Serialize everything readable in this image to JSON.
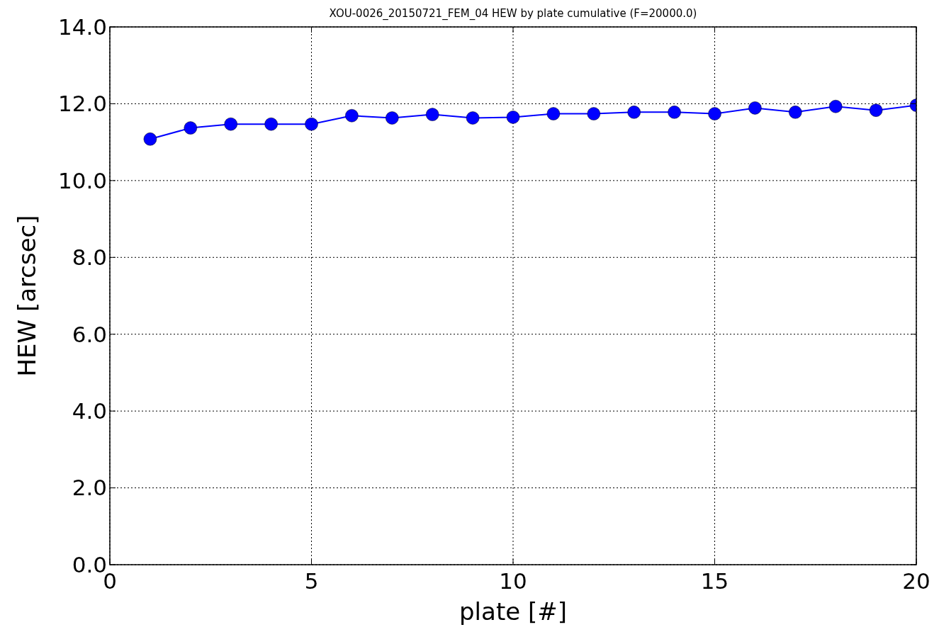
{
  "chart_data": {
    "type": "line",
    "title": "XOU-0026_20150721_FEM_04 HEW by plate cumulative (F=20000.0)",
    "xlabel": "plate [#]",
    "ylabel": "HEW [arcsec]",
    "x": [
      1,
      2,
      3,
      4,
      5,
      6,
      7,
      8,
      9,
      10,
      11,
      12,
      13,
      14,
      15,
      16,
      17,
      18,
      19,
      20
    ],
    "series": [
      {
        "color": "#0000ff",
        "values": [
          11.08,
          11.37,
          11.47,
          11.47,
          11.47,
          11.69,
          11.63,
          11.72,
          11.63,
          11.65,
          11.74,
          11.74,
          11.78,
          11.78,
          11.74,
          11.89,
          11.78,
          11.93,
          11.83,
          11.96
        ]
      }
    ],
    "xlim": [
      0,
      20
    ],
    "xticks": [
      0,
      5,
      10,
      15,
      20
    ],
    "ylim": [
      0,
      14
    ],
    "yticks": [
      {
        "value": 0,
        "label": "0.0"
      },
      {
        "value": 2,
        "label": "2.0"
      },
      {
        "value": 4,
        "label": "4.0"
      },
      {
        "value": 6,
        "label": "6.0"
      },
      {
        "value": 8,
        "label": "8.0"
      },
      {
        "value": 10,
        "label": "10.0"
      },
      {
        "value": 12,
        "label": "12.0"
      },
      {
        "value": 14,
        "label": "14.0"
      }
    ],
    "grid": true,
    "marker": "circle",
    "line_style": "solid"
  }
}
